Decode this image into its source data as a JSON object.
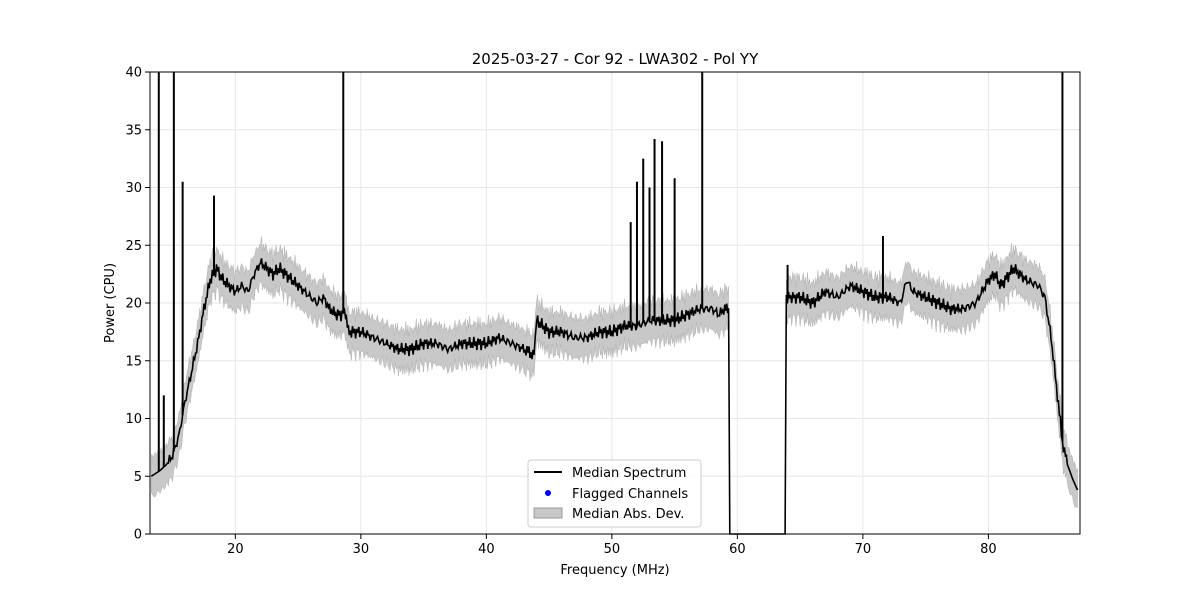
{
  "chart_data": {
    "type": "line",
    "title": "2025-03-27 - Cor 92 - LWA302 - Pol YY",
    "xlabel": "Frequency (MHz)",
    "ylabel": "Power (CPU)",
    "xlim": [
      13.2,
      87.3
    ],
    "ylim": [
      0,
      40
    ],
    "xticks": [
      20,
      30,
      40,
      50,
      60,
      70,
      80
    ],
    "yticks": [
      0,
      5,
      10,
      15,
      20,
      25,
      30,
      35,
      40
    ],
    "grid": true,
    "legend_position": "lower-center",
    "series": [
      {
        "name": "Median Spectrum",
        "color": "#000000",
        "x": [
          13.3,
          13.6,
          14.0,
          14.5,
          15.0,
          15.5,
          16.0,
          16.5,
          17.0,
          17.5,
          18.0,
          18.5,
          19.0,
          19.5,
          20.0,
          20.5,
          21.0,
          21.5,
          22.0,
          22.5,
          23.0,
          23.5,
          24.0,
          24.5,
          25.0,
          25.5,
          26.0,
          26.5,
          27.0,
          27.5,
          28.0,
          28.5,
          28.7,
          29.0,
          30.0,
          31.0,
          32.0,
          33.0,
          34.0,
          35.0,
          36.0,
          37.0,
          38.0,
          39.0,
          40.0,
          41.0,
          42.0,
          43.0,
          43.8,
          44.0,
          45.0,
          46.0,
          47.0,
          48.0,
          49.0,
          50.0,
          51.0,
          52.0,
          53.0,
          54.0,
          55.0,
          56.0,
          57.0,
          58.0,
          58.5,
          59.0,
          59.3,
          59.4,
          60.0,
          61.0,
          62.0,
          63.0,
          63.8,
          63.9,
          64.5,
          65.0,
          66.0,
          67.0,
          68.0,
          69.0,
          70.0,
          71.0,
          72.0,
          73.0,
          73.5,
          74.0,
          75.0,
          76.0,
          77.0,
          78.0,
          79.0,
          80.0,
          80.5,
          81.0,
          82.0,
          83.0,
          84.0,
          84.5,
          85.0,
          85.5,
          85.9,
          86.3,
          86.7,
          87.1
        ],
        "y": [
          5.0,
          5.2,
          5.5,
          6.0,
          6.8,
          8.5,
          11.5,
          14.0,
          16.5,
          19.5,
          22.0,
          23.0,
          22.0,
          21.5,
          21.0,
          21.5,
          21.0,
          22.5,
          23.5,
          23.0,
          22.5,
          23.0,
          22.5,
          22.0,
          21.5,
          21.0,
          20.5,
          20.0,
          20.5,
          19.5,
          19.0,
          19.0,
          19.5,
          17.5,
          17.5,
          17.0,
          16.5,
          16.0,
          16.0,
          16.5,
          16.5,
          16.0,
          16.5,
          16.5,
          16.5,
          17.0,
          16.5,
          16.0,
          15.5,
          18.5,
          17.5,
          17.5,
          17.0,
          17.0,
          17.5,
          17.5,
          18.0,
          18.0,
          18.5,
          18.5,
          18.5,
          19.0,
          19.5,
          19.5,
          19.0,
          19.5,
          19.2,
          0.0,
          0.0,
          0.0,
          0.0,
          0.0,
          0.0,
          20.5,
          20.5,
          20.5,
          20.0,
          21.0,
          20.5,
          21.5,
          21.0,
          20.5,
          20.5,
          20.0,
          22.0,
          21.0,
          20.5,
          20.0,
          19.5,
          19.5,
          20.0,
          22.0,
          22.5,
          21.5,
          23.0,
          22.0,
          21.5,
          20.5,
          17.0,
          12.0,
          8.0,
          6.0,
          4.8,
          3.8
        ]
      },
      {
        "name": "Flagged Channels",
        "color": "#0000ff",
        "x": [],
        "y": []
      },
      {
        "name": "Median Abs. Dev.",
        "color": "#c8c8c8"
      }
    ],
    "spikes": [
      {
        "x": 13.9,
        "y": 40
      },
      {
        "x": 14.3,
        "y": 12
      },
      {
        "x": 15.1,
        "y": 40
      },
      {
        "x": 15.8,
        "y": 30.5
      },
      {
        "x": 18.3,
        "y": 29.3
      },
      {
        "x": 28.6,
        "y": 40
      },
      {
        "x": 51.5,
        "y": 27
      },
      {
        "x": 52.0,
        "y": 30.5
      },
      {
        "x": 52.5,
        "y": 32.5
      },
      {
        "x": 53.0,
        "y": 30
      },
      {
        "x": 53.4,
        "y": 34.2
      },
      {
        "x": 54.0,
        "y": 34
      },
      {
        "x": 55.0,
        "y": 30.8
      },
      {
        "x": 57.2,
        "y": 40
      },
      {
        "x": 64.0,
        "y": 23.3
      },
      {
        "x": 71.6,
        "y": 25.8
      },
      {
        "x": 85.9,
        "y": 40
      }
    ]
  }
}
